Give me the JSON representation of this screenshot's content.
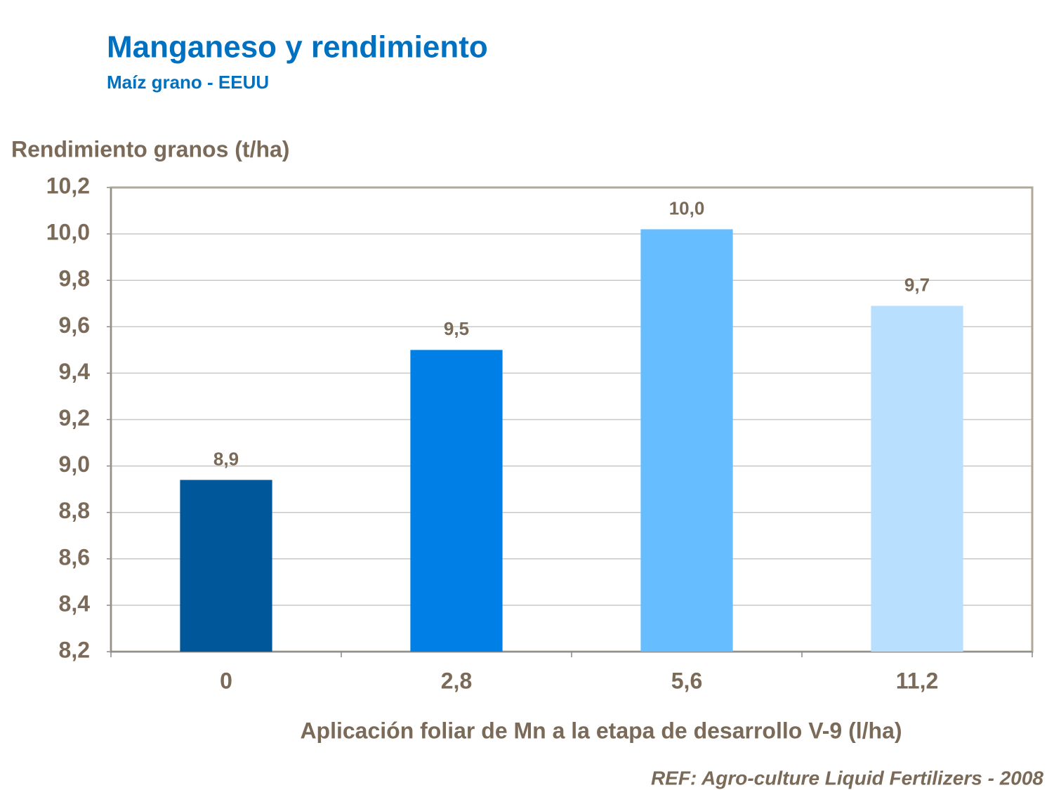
{
  "chart_data": {
    "type": "bar",
    "title": "Manganeso y rendimiento",
    "subtitle": "Maíz grano - EEUU",
    "y_label": "Rendimiento granos (t/ha)",
    "x_label": "Aplicación foliar de Mn a la etapa de desarrollo V-9 (l/ha)",
    "source": "REF: Agro-culture Liquid Fertilizers - 2008",
    "categories": [
      "0",
      "2,8",
      "5,6",
      "11,2"
    ],
    "values": [
      8.94,
      9.5,
      10.02,
      9.69
    ],
    "value_labels": [
      "8,9",
      "9,5",
      "10,0",
      "9,7"
    ],
    "colors": [
      "#00589b",
      "#0080e6",
      "#66bdff",
      "#b8dffd"
    ],
    "ylim": [
      8.2,
      10.2
    ],
    "yticks": [
      {
        "value": 8.2,
        "label": "8,2"
      },
      {
        "value": 8.4,
        "label": "8,4"
      },
      {
        "value": 8.6,
        "label": "8,6"
      },
      {
        "value": 8.8,
        "label": "8,8"
      },
      {
        "value": 9.0,
        "label": "9,0"
      },
      {
        "value": 9.2,
        "label": "9,2"
      },
      {
        "value": 9.4,
        "label": "9,4"
      },
      {
        "value": 9.6,
        "label": "9,6"
      },
      {
        "value": 9.8,
        "label": "9,8"
      },
      {
        "value": 10.0,
        "label": "10,0"
      },
      {
        "value": 10.2,
        "label": "10,2"
      }
    ],
    "grid": true
  }
}
